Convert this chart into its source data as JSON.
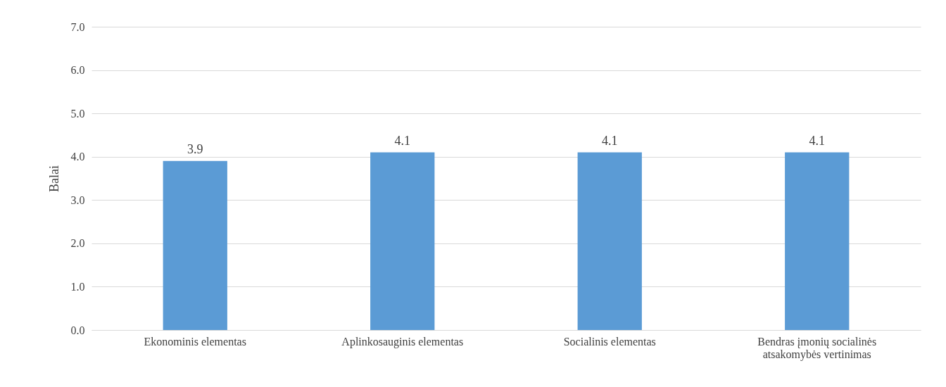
{
  "chart_data": {
    "type": "bar",
    "ylabel": "Balai",
    "categories": [
      "Ekonominis elementas",
      "Aplinkosauginis elementas",
      "Socialinis elementas",
      "Bendras įmonių socialinės atsakomybės vertinimas"
    ],
    "values": [
      3.9,
      4.1,
      4.1,
      4.1
    ],
    "color": "#5b9bd5",
    "ylim": [
      0,
      7
    ],
    "yticks": [
      {
        "value": 0,
        "label": "0.0"
      },
      {
        "value": 1,
        "label": "1.0"
      },
      {
        "value": 2,
        "label": "2.0"
      },
      {
        "value": 3,
        "label": "3.0"
      },
      {
        "value": 4,
        "label": "4.0"
      },
      {
        "value": 5,
        "label": "5.0"
      },
      {
        "value": 6,
        "label": "6.0"
      },
      {
        "value": 7,
        "label": "7.0"
      }
    ],
    "grid": "y",
    "data_labels": true
  }
}
